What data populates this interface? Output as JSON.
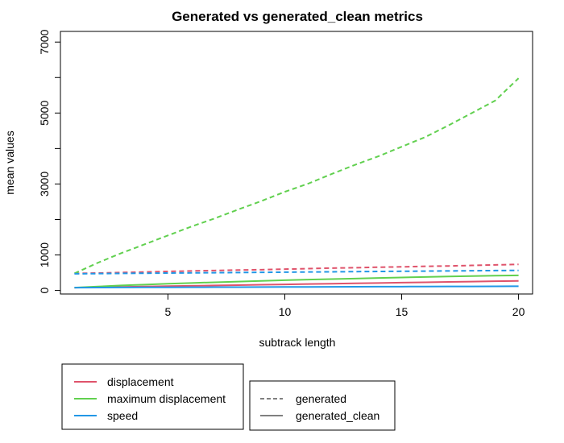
{
  "chart_data": {
    "type": "line",
    "title": "Generated vs generated_clean metrics",
    "xlabel": "subtrack length",
    "ylabel": "mean values",
    "xlim": [
      0.4,
      20.6
    ],
    "ylim": [
      -100,
      7300
    ],
    "x_ticks": [
      5,
      10,
      15,
      20
    ],
    "y_ticks": [
      0,
      1000,
      3000,
      5000,
      7000
    ],
    "grid": false,
    "x": [
      1,
      2,
      3,
      4,
      5,
      6,
      7,
      8,
      9,
      10,
      11,
      12,
      13,
      14,
      15,
      16,
      17,
      18,
      19,
      20
    ],
    "series": [
      {
        "name": "displacement",
        "style": "generated",
        "color": "#DF536B",
        "values": [
          480,
          490,
          505,
          520,
          535,
          550,
          562,
          575,
          585,
          600,
          615,
          630,
          640,
          655,
          665,
          680,
          690,
          705,
          720,
          735
        ]
      },
      {
        "name": "maximum displacement",
        "style": "generated",
        "color": "#61D04F",
        "values": [
          480,
          780,
          1050,
          1300,
          1550,
          1800,
          2030,
          2280,
          2520,
          2780,
          3010,
          3280,
          3540,
          3780,
          4050,
          4320,
          4650,
          5000,
          5350,
          5980
        ]
      },
      {
        "name": "speed",
        "style": "generated",
        "color": "#2297E6",
        "values": [
          470,
          475,
          480,
          485,
          490,
          495,
          500,
          505,
          510,
          515,
          520,
          525,
          530,
          535,
          540,
          545,
          550,
          555,
          560,
          565
        ]
      },
      {
        "name": "displacement",
        "style": "generated_clean",
        "color": "#DF536B",
        "values": [
          80,
          90,
          100,
          110,
          120,
          130,
          140,
          150,
          160,
          170,
          180,
          190,
          200,
          210,
          220,
          230,
          240,
          250,
          260,
          270
        ]
      },
      {
        "name": "maximum displacement",
        "style": "generated_clean",
        "color": "#61D04F",
        "values": [
          80,
          110,
          140,
          165,
          190,
          210,
          230,
          250,
          270,
          290,
          305,
          320,
          335,
          350,
          365,
          380,
          395,
          405,
          415,
          425
        ]
      },
      {
        "name": "speed",
        "style": "generated_clean",
        "color": "#2297E6",
        "values": [
          80,
          82,
          84,
          86,
          88,
          90,
          92,
          94,
          96,
          98,
          100,
          102,
          104,
          106,
          108,
          110,
          112,
          114,
          116,
          118
        ]
      }
    ],
    "legend_colors": {
      "items": [
        {
          "label": "displacement",
          "color": "#DF536B"
        },
        {
          "label": "maximum displacement",
          "color": "#61D04F"
        },
        {
          "label": "speed",
          "color": "#2297E6"
        }
      ],
      "placement": "bottom-left"
    },
    "legend_styles": {
      "items": [
        {
          "label": "generated",
          "dash": "dashed"
        },
        {
          "label": "generated_clean",
          "dash": "solid"
        }
      ],
      "placement": "bottom-center"
    }
  }
}
